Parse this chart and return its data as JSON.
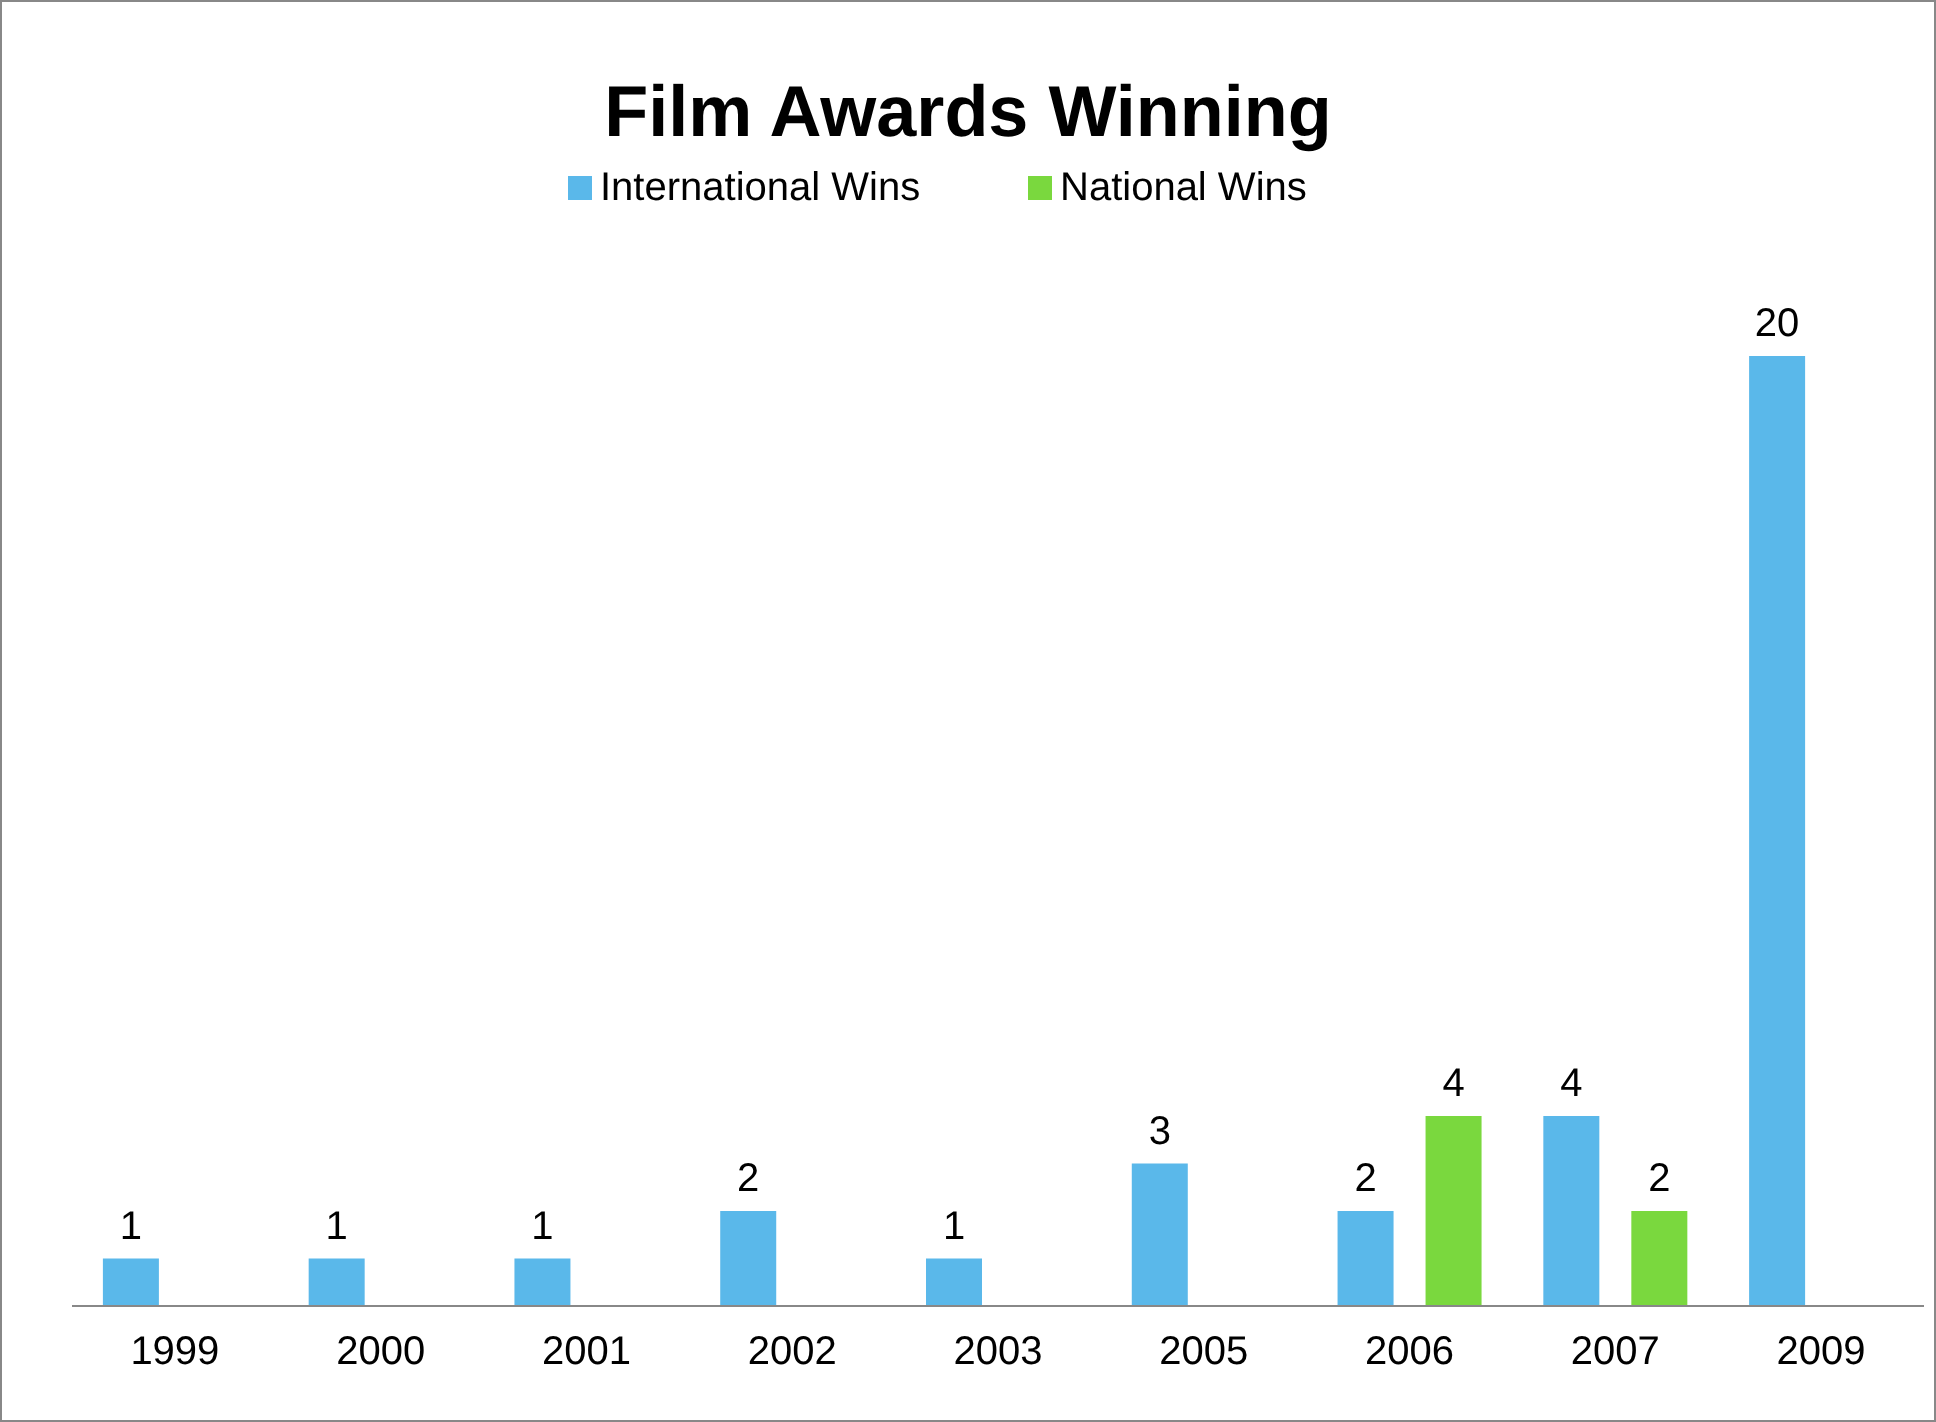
{
  "chart_data": {
    "type": "bar",
    "title": "Film Awards Winning",
    "categories": [
      "1999",
      "2000",
      "2001",
      "2002",
      "2003",
      "2005",
      "2006",
      "2007",
      "2009"
    ],
    "series": [
      {
        "name": "International Wins",
        "color": "#5ab8ea",
        "values": [
          1,
          1,
          1,
          2,
          1,
          3,
          2,
          4,
          20
        ]
      },
      {
        "name": "National Wins",
        "color": "#7ad83e",
        "values": [
          null,
          null,
          null,
          null,
          null,
          null,
          4,
          2,
          null
        ]
      }
    ],
    "data_labels": true,
    "legend": "top",
    "grid": false
  }
}
